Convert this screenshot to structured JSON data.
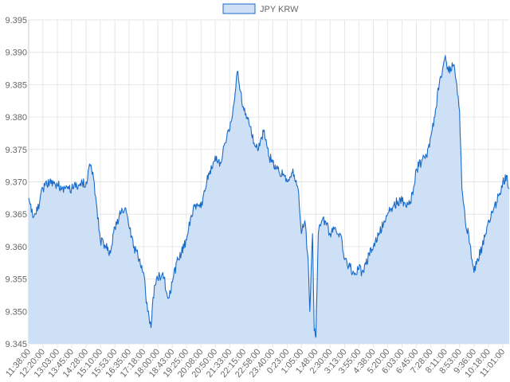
{
  "chart_data": {
    "type": "area",
    "legend": {
      "position": "top-center"
    },
    "grid": true,
    "ylim": [
      9.345,
      9.395
    ],
    "y_ticks": [
      9.345,
      9.35,
      9.355,
      9.36,
      9.365,
      9.37,
      9.375,
      9.38,
      9.385,
      9.39,
      9.395
    ],
    "y_tick_labels": [
      "9.345",
      "9.350",
      "9.355",
      "9.360",
      "9.365",
      "9.370",
      "9.375",
      "9.380",
      "9.385",
      "9.390",
      "9.395"
    ],
    "x_tick_labels": [
      "11:38:00",
      "12:20:00",
      "13:03:00",
      "13:45:00",
      "14:28:00",
      "15:10:00",
      "15:53:00",
      "16:35:00",
      "17:18:00",
      "18:00:00",
      "18:43:00",
      "19:25:00",
      "20:08:00",
      "20:50:00",
      "21:33:00",
      "22:15:00",
      "22:58:00",
      "23:40:00",
      "0:23:00",
      "1:05:00",
      "1:48:00",
      "2:30:00",
      "3:13:00",
      "3:55:00",
      "4:38:00",
      "5:20:00",
      "6:03:00",
      "6:45:00",
      "7:28:00",
      "8:11:00",
      "8:53:00",
      "9:36:00",
      "10:18:00",
      "11:01:00"
    ],
    "series": [
      {
        "name": "JPY KRW",
        "line_color": "#1a6bc8",
        "fill_color": "#cde0f5",
        "anchors": [
          [
            "11:38:00",
            9.3675
          ],
          [
            "11:50:00",
            9.3645
          ],
          [
            "12:00:00",
            9.365
          ],
          [
            "12:20:00",
            9.369
          ],
          [
            "12:40:00",
            9.37
          ],
          [
            "13:03:00",
            9.3695
          ],
          [
            "13:25:00",
            9.369
          ],
          [
            "13:45:00",
            9.369
          ],
          [
            "14:05:00",
            9.3695
          ],
          [
            "14:28:00",
            9.37
          ],
          [
            "14:40:00",
            9.3725
          ],
          [
            "14:50:00",
            9.3705
          ],
          [
            "15:00:00",
            9.366
          ],
          [
            "15:10:00",
            9.361
          ],
          [
            "15:25:00",
            9.36
          ],
          [
            "15:40:00",
            9.359
          ],
          [
            "15:53:00",
            9.363
          ],
          [
            "16:10:00",
            9.365
          ],
          [
            "16:25:00",
            9.366
          ],
          [
            "16:35:00",
            9.363
          ],
          [
            "16:50:00",
            9.36
          ],
          [
            "17:05:00",
            9.358
          ],
          [
            "17:18:00",
            9.356
          ],
          [
            "17:30:00",
            9.35
          ],
          [
            "17:40:00",
            9.3475
          ],
          [
            "17:50:00",
            9.354
          ],
          [
            "18:00:00",
            9.355
          ],
          [
            "18:15:00",
            9.356
          ],
          [
            "18:30:00",
            9.352
          ],
          [
            "18:43:00",
            9.3545
          ],
          [
            "19:00:00",
            9.358
          ],
          [
            "19:10:00",
            9.359
          ],
          [
            "19:25:00",
            9.361
          ],
          [
            "19:45:00",
            9.366
          ],
          [
            "20:08:00",
            9.366
          ],
          [
            "20:25:00",
            9.37
          ],
          [
            "20:40:00",
            9.372
          ],
          [
            "20:50:00",
            9.374
          ],
          [
            "21:05:00",
            9.373
          ],
          [
            "21:20:00",
            9.376
          ],
          [
            "21:33:00",
            9.378
          ],
          [
            "21:45:00",
            9.382
          ],
          [
            "21:55:00",
            9.387
          ],
          [
            "22:05:00",
            9.384
          ],
          [
            "22:15:00",
            9.381
          ],
          [
            "22:30:00",
            9.379
          ],
          [
            "22:45:00",
            9.376
          ],
          [
            "22:58:00",
            9.375
          ],
          [
            "23:15:00",
            9.378
          ],
          [
            "23:28:00",
            9.374
          ],
          [
            "23:40:00",
            9.373
          ],
          [
            "23:55:00",
            9.372
          ],
          [
            "0:10:00",
            9.371
          ],
          [
            "0:23:00",
            9.37
          ],
          [
            "0:40:00",
            9.372
          ],
          [
            "0:55:00",
            9.369
          ],
          [
            "1:05:00",
            9.362
          ],
          [
            "1:15:00",
            9.364
          ],
          [
            "1:25:00",
            9.358
          ],
          [
            "1:30:00",
            9.35
          ],
          [
            "1:38:00",
            9.362
          ],
          [
            "1:43:00",
            9.347
          ],
          [
            "1:48:00",
            9.346
          ],
          [
            "1:55:00",
            9.362
          ],
          [
            "2:05:00",
            9.364
          ],
          [
            "2:15:00",
            9.364
          ],
          [
            "2:30:00",
            9.362
          ],
          [
            "2:45:00",
            9.363
          ],
          [
            "3:00:00",
            9.362
          ],
          [
            "3:13:00",
            9.358
          ],
          [
            "3:25:00",
            9.357
          ],
          [
            "3:40:00",
            9.356
          ],
          [
            "3:55:00",
            9.3565
          ],
          [
            "4:10:00",
            9.356
          ],
          [
            "4:25:00",
            9.359
          ],
          [
            "4:38:00",
            9.36
          ],
          [
            "4:55:00",
            9.362
          ],
          [
            "5:10:00",
            9.364
          ],
          [
            "5:20:00",
            9.365
          ],
          [
            "5:35:00",
            9.366
          ],
          [
            "5:50:00",
            9.367
          ],
          [
            "6:03:00",
            9.367
          ],
          [
            "6:20:00",
            9.3665
          ],
          [
            "6:35:00",
            9.368
          ],
          [
            "6:45:00",
            9.372
          ],
          [
            "7:00:00",
            9.373
          ],
          [
            "7:15:00",
            9.374
          ],
          [
            "7:28:00",
            9.377
          ],
          [
            "7:40:00",
            9.38
          ],
          [
            "7:55:00",
            9.386
          ],
          [
            "8:05:00",
            9.388
          ],
          [
            "8:11:00",
            9.3895
          ],
          [
            "8:20:00",
            9.387
          ],
          [
            "8:35:00",
            9.388
          ],
          [
            "8:45:00",
            9.385
          ],
          [
            "8:53:00",
            9.381
          ],
          [
            "9:00:00",
            9.369
          ],
          [
            "9:10:00",
            9.364
          ],
          [
            "9:20:00",
            9.362
          ],
          [
            "9:30:00",
            9.358
          ],
          [
            "9:36:00",
            9.356
          ],
          [
            "9:45:00",
            9.358
          ],
          [
            "10:00:00",
            9.36
          ],
          [
            "10:10:00",
            9.362
          ],
          [
            "10:18:00",
            9.364
          ],
          [
            "10:35:00",
            9.366
          ],
          [
            "10:50:00",
            9.368
          ],
          [
            "11:01:00",
            9.37
          ],
          [
            "11:12:00",
            9.371
          ],
          [
            "11:20:00",
            9.369
          ]
        ]
      }
    ]
  }
}
